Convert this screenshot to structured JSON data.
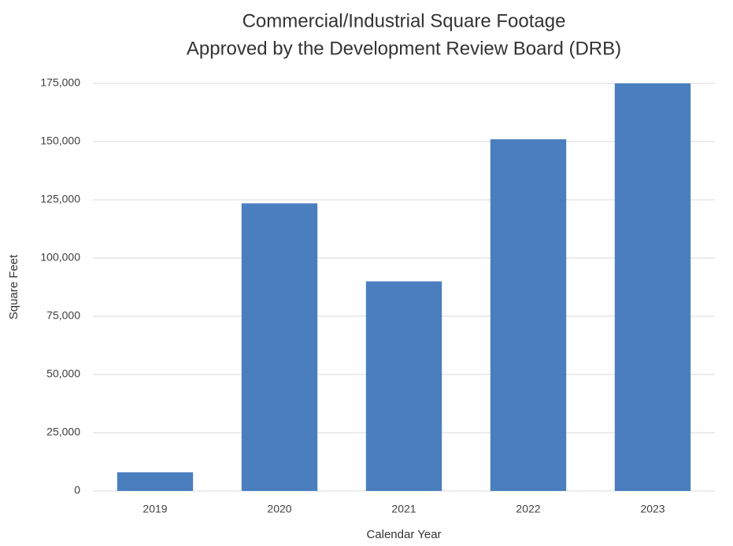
{
  "chart_data": {
    "type": "bar",
    "title": [
      "Commercial/Industrial Square Footage",
      "Approved by the Development Review Board (DRB)"
    ],
    "x_label": "Calendar Year",
    "y_label": "Square Feet",
    "categories": [
      "2019",
      "2020",
      "2021",
      "2022",
      "2023"
    ],
    "values": [
      8000,
      123500,
      90000,
      151000,
      175000
    ],
    "color": "#4a7ebf",
    "ylim": [
      0,
      175000
    ],
    "yticks": [
      0,
      {
        "value": 25000,
        "label": "25,000"
      },
      {
        "value": 50000,
        "label": "50,000"
      },
      {
        "value": 75000,
        "label": "75,000"
      },
      {
        "value": 100000,
        "label": "100,000"
      },
      {
        "value": 125000,
        "label": "125,000"
      },
      {
        "value": 150000,
        "label": "150,000"
      },
      {
        "value": 175000,
        "label": "175,000"
      }
    ],
    "grid": true
  }
}
